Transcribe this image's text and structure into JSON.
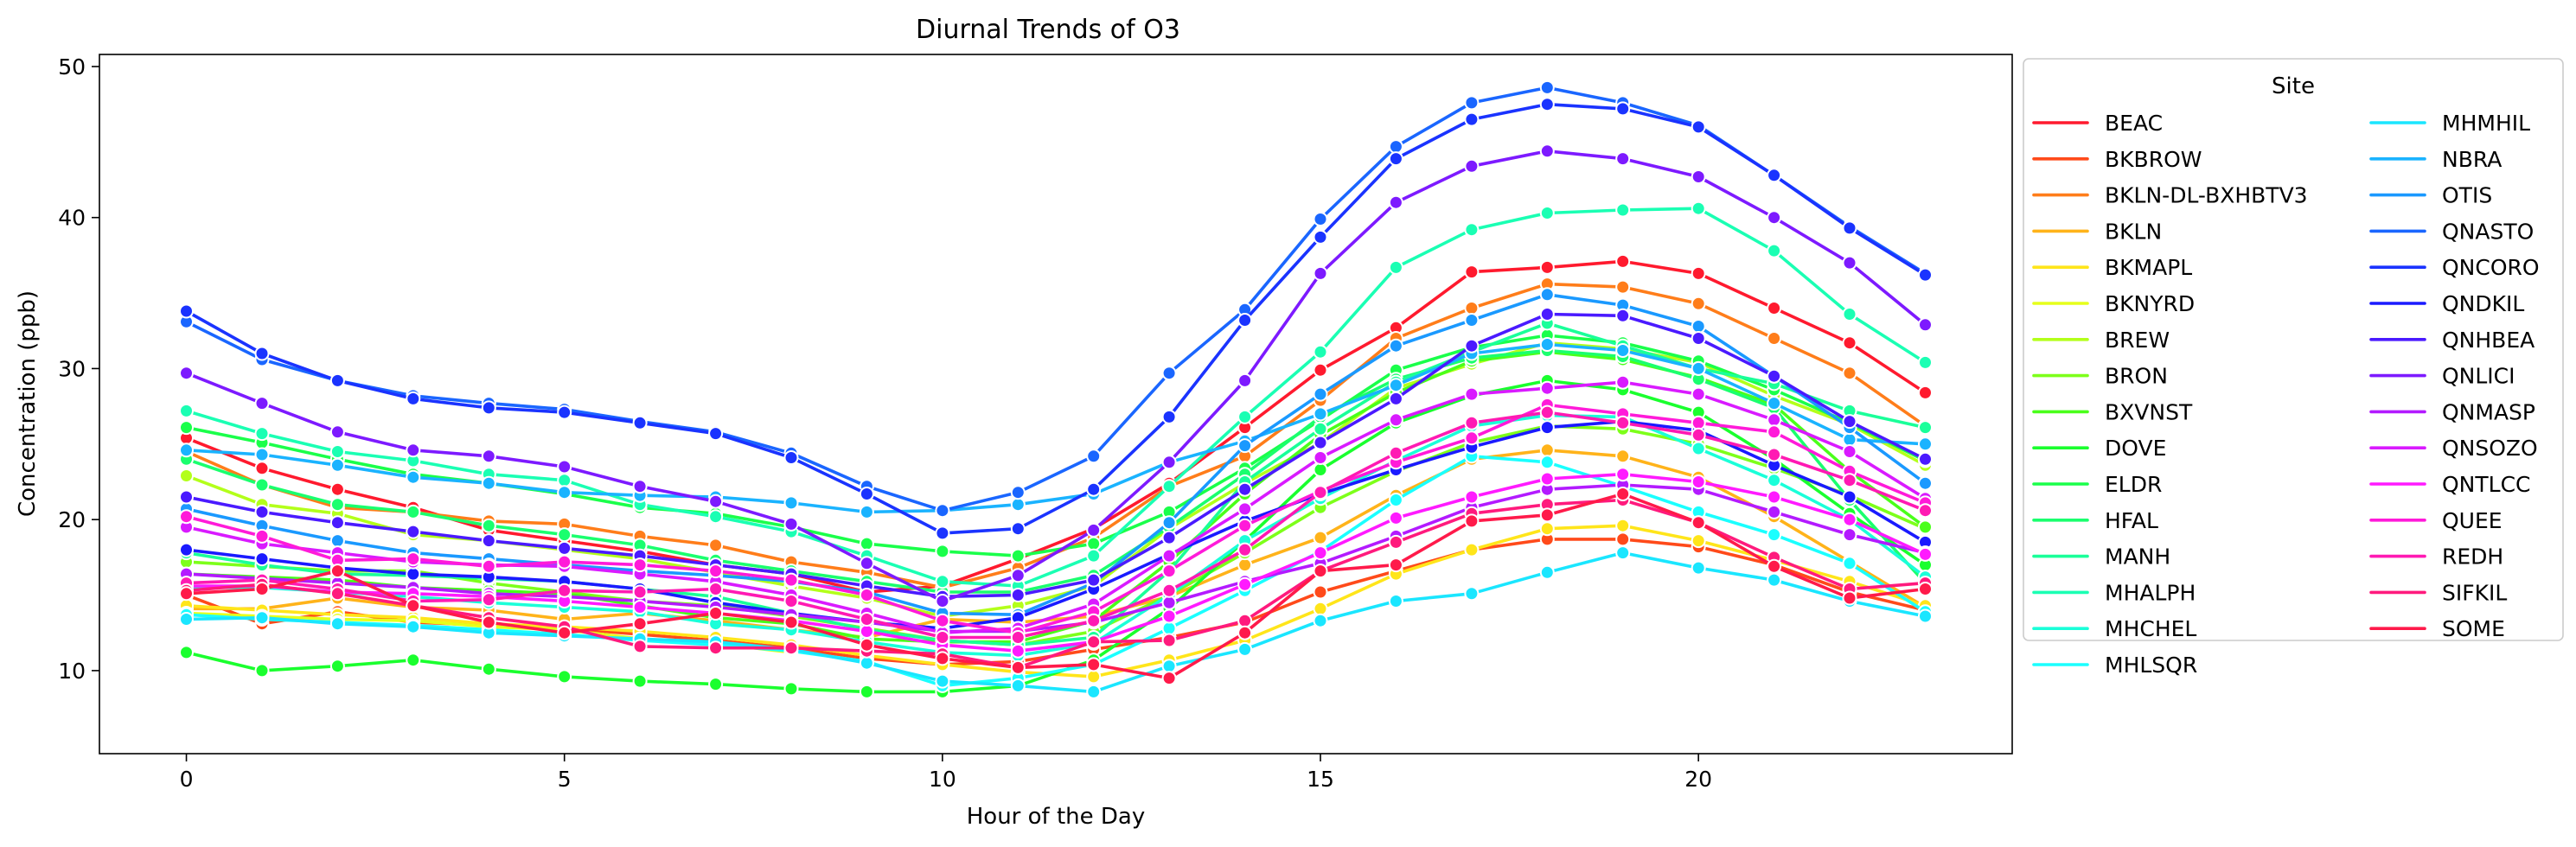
{
  "chart_data": {
    "type": "line",
    "title": "Diurnal Trends of O3",
    "xlabel": "Hour of the Day",
    "ylabel": "Concentration (ppb)",
    "xlim": [
      -1.15,
      24.15
    ],
    "ylim": [
      4.5,
      50.8
    ],
    "xticks": [
      0,
      5,
      10,
      15,
      20
    ],
    "yticks": [
      10,
      20,
      30,
      40,
      50
    ],
    "grid": false,
    "legend": {
      "title": "Site",
      "placement": "outside-right",
      "columns": 2
    },
    "x": [
      0,
      1,
      2,
      3,
      4,
      5,
      6,
      7,
      8,
      9,
      10,
      11,
      12,
      13,
      14,
      15,
      16,
      17,
      18,
      19,
      20,
      21,
      22,
      23
    ],
    "series": [
      {
        "name": "BEAC",
        "color": "#ff1a2e",
        "values": [
          25.4,
          23.4,
          22.0,
          20.8,
          19.3,
          18.6,
          17.9,
          17.0,
          16.4,
          15.2,
          15.6,
          17.4,
          19.4,
          22.4,
          26.1,
          29.9,
          32.7,
          36.4,
          36.7,
          37.1,
          36.3,
          34.0,
          31.7,
          28.4
        ]
      },
      {
        "name": "BKBROW",
        "color": "#ff4a1a",
        "values": [
          15.0,
          13.1,
          13.9,
          13.2,
          13.0,
          12.8,
          12.4,
          12.0,
          11.5,
          10.8,
          10.4,
          10.6,
          11.4,
          12.2,
          13.2,
          15.2,
          16.6,
          18.0,
          18.7,
          18.7,
          18.2,
          17.0,
          15.2,
          14.0
        ]
      },
      {
        "name": "BKLN-DL-BXHBTV3",
        "color": "#ff7d1a",
        "values": [
          24.5,
          22.3,
          20.8,
          20.5,
          19.9,
          19.7,
          18.9,
          18.3,
          17.2,
          16.5,
          15.5,
          16.8,
          18.8,
          22.2,
          24.2,
          27.9,
          32.0,
          34.0,
          35.6,
          35.4,
          34.3,
          32.0,
          29.7,
          26.2
        ]
      },
      {
        "name": "BKLN",
        "color": "#ffb31a",
        "values": [
          14.1,
          14.1,
          14.8,
          14.2,
          14.0,
          13.4,
          13.8,
          13.3,
          12.7,
          12.2,
          13.4,
          13.2,
          13.6,
          14.9,
          17.0,
          18.8,
          21.6,
          24.0,
          24.6,
          24.2,
          22.8,
          20.2,
          17.2,
          14.2
        ]
      },
      {
        "name": "BKMAPL",
        "color": "#ffe51a",
        "values": [
          14.3,
          14.0,
          13.7,
          13.5,
          13.1,
          12.9,
          12.6,
          12.2,
          11.7,
          11.0,
          10.4,
          9.9,
          9.6,
          10.7,
          12.0,
          14.1,
          16.4,
          18.0,
          19.4,
          19.6,
          18.6,
          17.3,
          15.9,
          14.3
        ]
      },
      {
        "name": "BKNYRD",
        "color": "#e6ff1a",
        "values": [
          13.8,
          13.6,
          13.4,
          13.3,
          12.9,
          12.7,
          12.1,
          11.8,
          11.2,
          null,
          null,
          null,
          null,
          null,
          null,
          null,
          null,
          null,
          null,
          null,
          null,
          null,
          null,
          null
        ]
      },
      {
        "name": "BREW",
        "color": "#b3ff1a",
        "values": [
          22.9,
          21.0,
          20.4,
          19.0,
          18.6,
          18.0,
          17.4,
          16.5,
          15.6,
          14.8,
          13.6,
          14.3,
          15.6,
          19.4,
          22.4,
          25.1,
          28.7,
          30.3,
          31.7,
          31.3,
          30.4,
          28.2,
          26.3,
          23.6
        ]
      },
      {
        "name": "BRON",
        "color": "#7dff1a",
        "values": [
          17.2,
          16.9,
          16.6,
          16.6,
          15.8,
          15.2,
          14.6,
          14.3,
          13.6,
          12.8,
          12.0,
          11.7,
          12.6,
          15.0,
          17.8,
          20.8,
          23.2,
          25.1,
          26.2,
          26.0,
          25.0,
          23.4,
          21.6,
          19.4
        ]
      },
      {
        "name": "BXVNST",
        "color": "#4aff1a",
        "values": [
          16.4,
          16.2,
          16.0,
          15.5,
          15.3,
          15.1,
          14.3,
          13.5,
          13.1,
          12.1,
          11.9,
          11.9,
          13.3,
          17.2,
          21.7,
          25.6,
          28.4,
          30.5,
          31.1,
          30.6,
          29.4,
          27.6,
          23.2,
          19.5
        ]
      },
      {
        "name": "DOVE",
        "color": "#1aff2e",
        "values": [
          11.2,
          10.0,
          10.3,
          10.7,
          10.1,
          9.6,
          9.3,
          9.1,
          8.8,
          8.6,
          8.6,
          9.0,
          10.7,
          14.1,
          18.6,
          23.3,
          26.4,
          28.2,
          29.2,
          28.6,
          27.1,
          24.0,
          20.4,
          17.0
        ]
      },
      {
        "name": "ELDR",
        "color": "#1aff4a",
        "values": [
          26.1,
          25.1,
          24.0,
          23.0,
          22.4,
          21.7,
          20.8,
          20.4,
          19.5,
          18.4,
          17.9,
          17.6,
          18.4,
          20.5,
          23.4,
          26.6,
          29.9,
          31.4,
          32.2,
          31.7,
          30.5,
          28.6,
          26.4,
          23.9
        ]
      },
      {
        "name": "HFAL",
        "color": "#1aff6e",
        "values": [
          24.0,
          22.3,
          21.0,
          20.5,
          19.6,
          19.0,
          18.3,
          17.3,
          16.6,
          15.9,
          15.2,
          15.2,
          16.3,
          19.5,
          23.0,
          26.8,
          29.3,
          30.7,
          31.2,
          30.8,
          29.3,
          27.4,
          21.3,
          15.8
        ]
      },
      {
        "name": "MANH",
        "color": "#1aff99",
        "values": [
          17.8,
          17.0,
          16.4,
          16.3,
          16.1,
          15.9,
          15.4,
          14.9,
          13.8,
          12.7,
          12.0,
          11.7,
          12.2,
          16.6,
          22.5,
          26.0,
          29.1,
          31.1,
          33.0,
          31.5,
          30.0,
          29.0,
          27.2,
          26.1
        ]
      },
      {
        "name": "MHALPH",
        "color": "#1affb3",
        "values": [
          27.2,
          25.7,
          24.5,
          23.9,
          23.0,
          22.6,
          21.0,
          20.2,
          19.2,
          17.6,
          15.9,
          15.6,
          17.6,
          22.2,
          26.8,
          31.1,
          36.7,
          39.2,
          40.3,
          40.5,
          40.6,
          37.8,
          33.6,
          30.4
        ]
      },
      {
        "name": "MHCHEL",
        "color": "#1affd9",
        "values": [
          15.5,
          15.5,
          15.2,
          14.9,
          14.5,
          14.2,
          13.9,
          13.1,
          12.7,
          11.9,
          11.2,
          11.0,
          11.8,
          15.0,
          18.6,
          21.4,
          23.9,
          26.2,
          26.9,
          26.8,
          24.7,
          22.6,
          20.0,
          16.2
        ]
      },
      {
        "name": "MHLSQR",
        "color": "#1affff",
        "values": [
          13.7,
          13.4,
          13.2,
          13.0,
          12.7,
          12.4,
          12.0,
          11.7,
          11.3,
          10.6,
          9.0,
          9.5,
          10.4,
          12.8,
          15.3,
          17.9,
          21.3,
          24.2,
          23.8,
          22.2,
          20.5,
          19.0,
          17.1,
          13.9
        ]
      },
      {
        "name": "MHMHIL",
        "color": "#1ae6ff",
        "values": [
          13.4,
          13.5,
          13.1,
          12.9,
          12.5,
          12.3,
          12.1,
          11.9,
          11.4,
          10.5,
          9.3,
          9.0,
          8.6,
          10.3,
          11.4,
          13.3,
          14.6,
          15.1,
          16.5,
          17.8,
          16.8,
          16.0,
          14.6,
          13.6
        ]
      },
      {
        "name": "NBRA",
        "color": "#1ab3ff",
        "values": [
          24.6,
          24.3,
          23.6,
          22.8,
          22.4,
          21.8,
          21.6,
          21.5,
          21.1,
          20.5,
          20.6,
          21.0,
          21.7,
          23.8,
          25.2,
          27.0,
          28.9,
          31.0,
          31.6,
          31.2,
          30.0,
          27.7,
          25.3,
          25.0
        ]
      },
      {
        "name": "OTIS",
        "color": "#1a99ff",
        "values": [
          20.7,
          19.6,
          18.6,
          17.8,
          17.4,
          17.0,
          16.6,
          16.3,
          15.9,
          15.2,
          13.8,
          13.7,
          15.8,
          19.8,
          24.9,
          28.3,
          31.5,
          33.2,
          34.9,
          34.2,
          32.8,
          29.5,
          26.1,
          22.4
        ]
      },
      {
        "name": "QNASTO",
        "color": "#1a66ff",
        "values": [
          33.1,
          30.6,
          29.2,
          28.2,
          27.7,
          27.3,
          26.5,
          25.8,
          24.4,
          22.2,
          20.6,
          21.8,
          24.2,
          29.7,
          33.9,
          39.9,
          44.7,
          47.6,
          48.6,
          47.6,
          46.1,
          42.8,
          39.4,
          36.3
        ]
      },
      {
        "name": "QNCORO",
        "color": "#1a33ff",
        "values": [
          33.8,
          31.0,
          29.2,
          28.0,
          27.4,
          27.1,
          26.4,
          25.7,
          24.1,
          21.7,
          19.1,
          19.4,
          22.0,
          26.8,
          33.2,
          38.7,
          43.9,
          46.5,
          47.5,
          47.2,
          46.0,
          42.8,
          39.3,
          36.2
        ]
      },
      {
        "name": "QNDKIL",
        "color": "#1a1aff",
        "values": [
          18.0,
          17.4,
          16.8,
          16.4,
          16.2,
          15.9,
          15.4,
          14.5,
          13.8,
          13.2,
          12.8,
          13.5,
          15.4,
          17.7,
          19.9,
          21.7,
          23.3,
          24.8,
          26.1,
          26.5,
          25.9,
          23.6,
          21.5,
          18.5
        ]
      },
      {
        "name": "QNHBEA",
        "color": "#4a1aff",
        "values": [
          21.5,
          20.5,
          19.8,
          19.2,
          18.6,
          18.1,
          17.6,
          17.0,
          16.4,
          15.6,
          14.9,
          15.0,
          16.0,
          18.8,
          22.0,
          25.1,
          28.0,
          31.5,
          33.6,
          33.5,
          32.0,
          29.5,
          26.5,
          24.0
        ]
      },
      {
        "name": "QNLICI",
        "color": "#7d1aff",
        "values": [
          29.7,
          27.7,
          25.8,
          24.6,
          24.2,
          23.5,
          22.2,
          21.2,
          19.7,
          17.1,
          14.6,
          16.3,
          19.3,
          23.8,
          29.2,
          36.3,
          41.0,
          43.4,
          44.4,
          43.9,
          42.7,
          40.0,
          37.0,
          32.9
        ]
      },
      {
        "name": "QNMASP",
        "color": "#b31aff",
        "values": [
          16.4,
          16.1,
          15.8,
          15.5,
          15.1,
          14.9,
          14.6,
          14.2,
          13.7,
          13.2,
          12.6,
          12.6,
          13.2,
          14.5,
          15.9,
          17.1,
          18.9,
          20.8,
          22.0,
          22.3,
          22.0,
          20.5,
          19.0,
          17.8
        ]
      },
      {
        "name": "QNSOZO",
        "color": "#d91aff",
        "values": [
          19.5,
          18.4,
          17.8,
          17.2,
          17.0,
          16.9,
          16.4,
          15.9,
          15.0,
          13.8,
          12.5,
          12.8,
          14.4,
          17.6,
          20.7,
          24.1,
          26.6,
          28.3,
          28.7,
          29.1,
          28.3,
          26.6,
          24.5,
          21.4
        ]
      },
      {
        "name": "QNTLCC",
        "color": "#ff1aff",
        "values": [
          15.6,
          15.6,
          15.2,
          15.1,
          14.9,
          14.6,
          14.2,
          13.8,
          13.3,
          12.6,
          11.7,
          11.3,
          11.9,
          13.6,
          15.7,
          17.8,
          20.1,
          21.5,
          22.7,
          23.0,
          22.5,
          21.5,
          20.0,
          17.7
        ]
      },
      {
        "name": "QUEE",
        "color": "#ff1ad9",
        "values": [
          20.2,
          18.9,
          17.3,
          17.4,
          16.9,
          17.2,
          17.0,
          16.6,
          16.0,
          15.0,
          13.3,
          12.5,
          13.9,
          16.6,
          19.6,
          21.9,
          23.8,
          25.4,
          27.6,
          27.0,
          26.4,
          25.8,
          23.2,
          21.1
        ]
      },
      {
        "name": "REDH",
        "color": "#ff1ab3",
        "values": [
          15.8,
          16.0,
          15.4,
          14.6,
          14.7,
          15.3,
          15.2,
          15.4,
          14.6,
          13.4,
          12.2,
          12.2,
          13.3,
          15.3,
          18.0,
          21.8,
          24.4,
          26.4,
          27.1,
          26.4,
          25.6,
          24.3,
          22.6,
          20.6
        ]
      },
      {
        "name": "SIFKIL",
        "color": "#ff1a7d",
        "values": [
          15.3,
          15.7,
          15.1,
          14.3,
          13.5,
          12.9,
          11.6,
          11.5,
          11.5,
          11.3,
          11.1,
          10.2,
          11.9,
          12.0,
          13.3,
          16.6,
          18.5,
          20.4,
          21.0,
          21.3,
          19.8,
          17.5,
          15.4,
          15.8
        ]
      },
      {
        "name": "SOME",
        "color": "#ff1a4a",
        "values": [
          15.1,
          15.4,
          16.6,
          14.3,
          13.2,
          12.5,
          13.1,
          13.8,
          13.2,
          11.7,
          10.8,
          10.2,
          10.4,
          9.5,
          12.5,
          16.6,
          17.0,
          19.9,
          20.3,
          21.7,
          19.8,
          16.9,
          14.8,
          15.4
        ]
      }
    ]
  }
}
